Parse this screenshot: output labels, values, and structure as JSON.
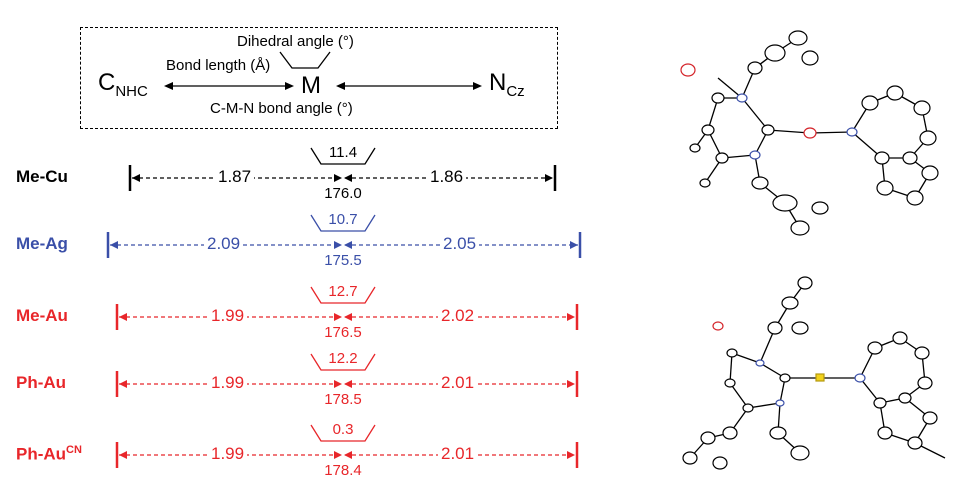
{
  "legend": {
    "dihedral_label": "Dihedral angle (°)",
    "bond_length_label": "Bond length (Å)",
    "angle_label": "C-M-N bond angle (°)",
    "left_atom": "C",
    "left_atom_sub": "NHC",
    "center_atom": "M",
    "right_atom": "N",
    "right_atom_sub": "Cz"
  },
  "rows": [
    {
      "label": "Me-Cu",
      "label_sup": "",
      "color": "#000000",
      "dihedral": "11.4",
      "left_bond": "1.87",
      "right_bond": "1.86",
      "angle": "176.0"
    },
    {
      "label": "Me-Ag",
      "label_sup": "",
      "color": "#3a4fa8",
      "dihedral": "10.7",
      "left_bond": "2.09",
      "right_bond": "2.05",
      "angle": "175.5"
    },
    {
      "label": "Me-Au",
      "label_sup": "",
      "color": "#e8262a",
      "dihedral": "12.7",
      "left_bond": "1.99",
      "right_bond": "2.02",
      "angle": "176.5"
    },
    {
      "label": "Ph-Au",
      "label_sup": "",
      "color": "#e8262a",
      "dihedral": "12.2",
      "left_bond": "1.99",
      "right_bond": "2.01",
      "angle": "178.5"
    },
    {
      "label": "Ph-Au",
      "label_sup": "CN",
      "color": "#e8262a",
      "dihedral": "0.3",
      "left_bond": "1.99",
      "right_bond": "2.01",
      "angle": "178.4"
    }
  ]
}
